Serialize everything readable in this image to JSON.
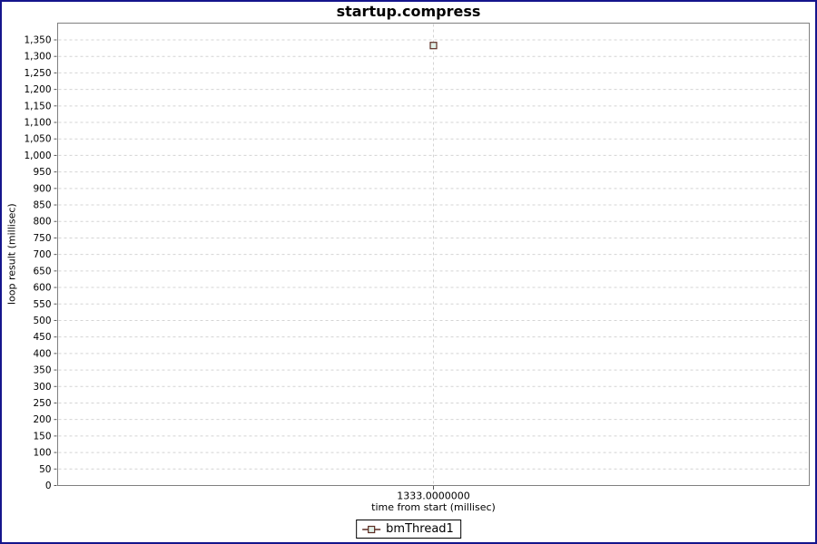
{
  "frame": {
    "border_color": "#15158C",
    "background": "#FFFFFF"
  },
  "chart_data": {
    "type": "scatter",
    "title": "startup.compress",
    "xlabel": "time from start (millisec)",
    "ylabel": "loop result (millisec)",
    "series": [
      {
        "name": "bmThread1",
        "marker": "square",
        "points": [
          {
            "x": 1333,
            "y": 1333
          }
        ]
      }
    ],
    "x_tick_labels": [
      "1333.0000000"
    ],
    "y_tick_labels": [
      "0",
      "50",
      "100",
      "150",
      "200",
      "250",
      "300",
      "350",
      "400",
      "450",
      "500",
      "550",
      "600",
      "650",
      "700",
      "750",
      "800",
      "850",
      "900",
      "950",
      "1,000",
      "1,050",
      "1,100",
      "1,150",
      "1,200",
      "1,250",
      "1,300",
      "1,350"
    ],
    "ylim": [
      0,
      1400
    ],
    "grid": "dashed",
    "legend_position": "bottom-center",
    "colors": {
      "grid": "#D4D4D4",
      "plot_border": "#808080",
      "axis_tick": "#555555",
      "series_stroke": "#5B2C22",
      "marker_fill": "#E1F0E8",
      "text": "#000000"
    }
  },
  "legend": {
    "items": [
      {
        "label": "bmThread1"
      }
    ]
  }
}
